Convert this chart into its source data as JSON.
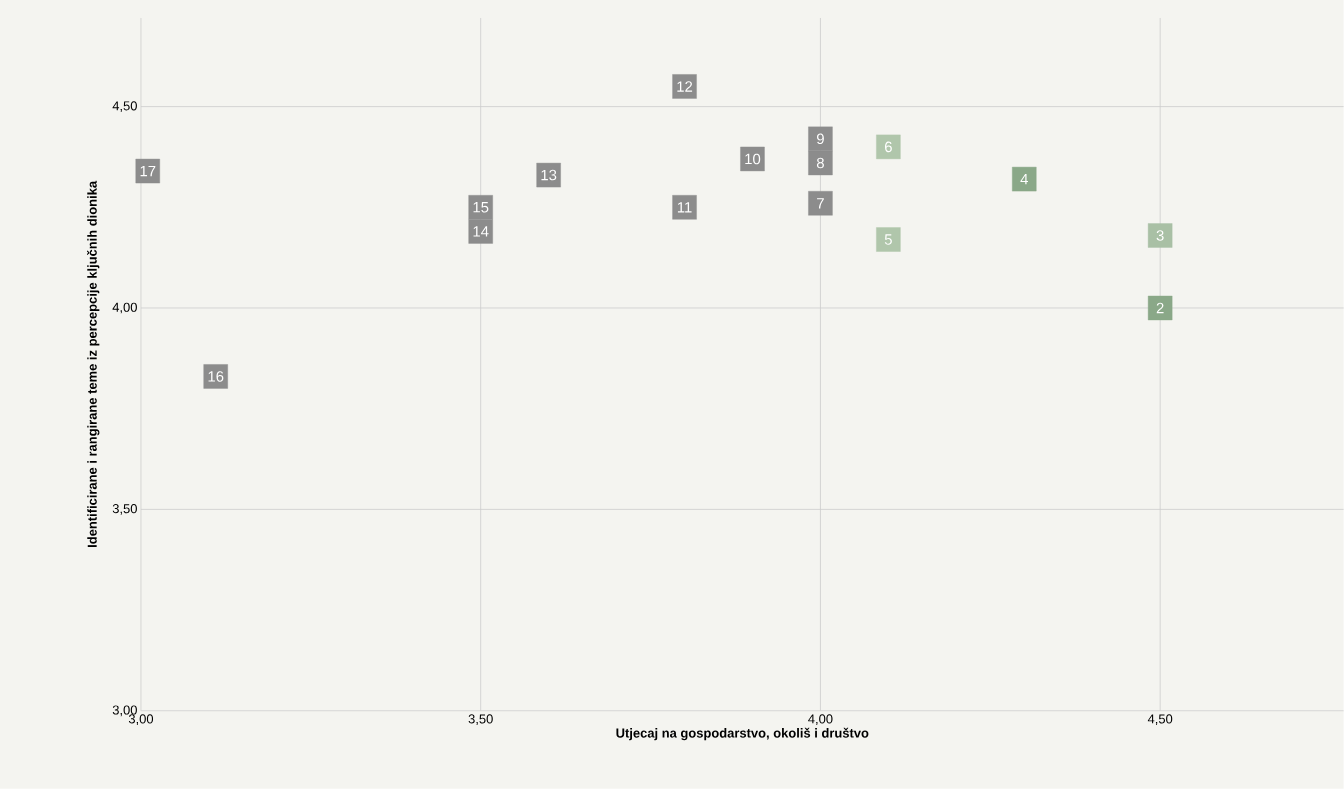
{
  "chart_data": {
    "type": "scatter",
    "xlabel": "Utjecaj na gospodarstvo, okoliš i društvo",
    "ylabel": "Identificirane i rangirane teme iz percepcije ključnih dionika",
    "x": [
      4.5,
      4.5,
      4.3,
      4.1,
      4.1,
      4.0,
      4.0,
      4.0,
      3.9,
      3.8,
      3.8,
      3.6,
      3.5,
      3.5,
      3.11,
      3.01
    ],
    "values": [
      4.0,
      4.18,
      4.32,
      4.17,
      4.4,
      4.26,
      4.36,
      4.42,
      4.37,
      4.25,
      4.55,
      4.33,
      4.19,
      4.25,
      3.83,
      4.34
    ],
    "colors": [
      "#8aa888",
      "#a9c0a5",
      "#8aa888",
      "#b0c6ab",
      "#b0c6ab",
      "#8c8c8c",
      "#8c8c8c",
      "#8c8c8c",
      "#8c8c8c",
      "#8c8c8c",
      "#8c8c8c",
      "#8c8c8c",
      "#8c8c8c",
      "#8c8c8c",
      "#8c8c8c",
      "#8c8c8c"
    ],
    "annotations": [
      {
        "text": "2",
        "x": 4.5,
        "y": 4.0
      },
      {
        "text": "3",
        "x": 4.5,
        "y": 4.18
      },
      {
        "text": "4",
        "x": 4.3,
        "y": 4.32
      },
      {
        "text": "5",
        "x": 4.1,
        "y": 4.17
      },
      {
        "text": "6",
        "x": 4.1,
        "y": 4.4
      },
      {
        "text": "7",
        "x": 4.0,
        "y": 4.26
      },
      {
        "text": "8",
        "x": 4.0,
        "y": 4.36
      },
      {
        "text": "9",
        "x": 4.0,
        "y": 4.42
      },
      {
        "text": "10",
        "x": 3.9,
        "y": 4.37
      },
      {
        "text": "11",
        "x": 3.8,
        "y": 4.25
      },
      {
        "text": "12",
        "x": 3.8,
        "y": 4.55
      },
      {
        "text": "13",
        "x": 3.6,
        "y": 4.33
      },
      {
        "text": "14",
        "x": 3.5,
        "y": 4.19
      },
      {
        "text": "15",
        "x": 3.5,
        "y": 4.25
      },
      {
        "text": "16",
        "x": 3.11,
        "y": 3.83
      },
      {
        "text": "17",
        "x": 3.01,
        "y": 4.34
      }
    ],
    "xlim": [
      3,
      4.77
    ],
    "ylim": [
      3,
      4.72
    ],
    "xticks": [
      {
        "value": 3,
        "label": "3,00"
      },
      {
        "value": 3.5,
        "label": "3,50"
      },
      {
        "value": 4,
        "label": "4,00"
      },
      {
        "value": 4.5,
        "label": "4,50"
      }
    ],
    "yticks": [
      {
        "value": 3,
        "label": "3,00"
      },
      {
        "value": 3.5,
        "label": "3,50"
      },
      {
        "value": 4,
        "label": "4,00"
      },
      {
        "value": 4.5,
        "label": "4,50"
      }
    ],
    "grid": true,
    "marker": "square"
  }
}
